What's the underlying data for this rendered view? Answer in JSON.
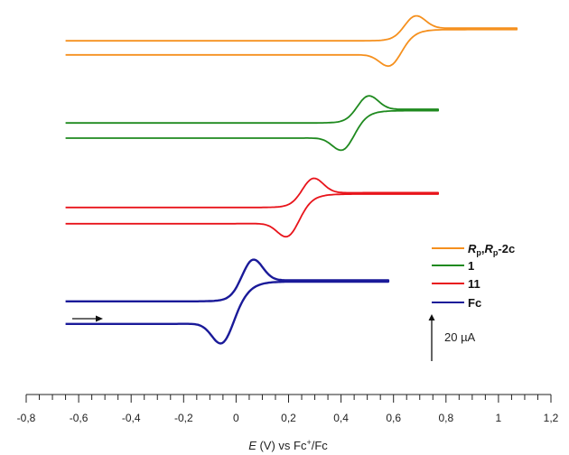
{
  "chart_data": {
    "type": "line",
    "title": "",
    "xlabel_italic": "E",
    "xlabel_rest": " (V) vs Fc",
    "xlabel_sup": "+",
    "xlabel_tail": "/Fc",
    "xlim": [
      -0.8,
      1.2
    ],
    "x_ticks": [
      "-0,8",
      "-0,6",
      "-0,4",
      "-0,2",
      "0",
      "0,2",
      "0,4",
      "0,6",
      "0,8",
      "1",
      "1,2"
    ],
    "x_tick_values": [
      -0.8,
      -0.6,
      -0.4,
      -0.2,
      0,
      0.2,
      0.4,
      0.6,
      0.8,
      1.0,
      1.2
    ],
    "scan_direction_arrow": "→",
    "scale_bar": {
      "label": "20 µA",
      "current_uA": 20
    },
    "series": [
      {
        "name": "Rp,Rp-2c",
        "legend_parts": [
          [
            "R",
            "i"
          ],
          [
            "p",
            "sub"
          ],
          [
            ",",
            "n"
          ],
          [
            "R",
            "i"
          ],
          [
            "p",
            "sub"
          ],
          [
            "-2c",
            "n"
          ]
        ],
        "color": "#f5901e",
        "e_start": -0.65,
        "e_vertex": 1.07,
        "e_pa": 0.68,
        "e_pc": 0.59,
        "ip_uA": 12,
        "baseline_uA": 0
      },
      {
        "name": "1",
        "legend_parts": [
          [
            "1",
            "n"
          ]
        ],
        "color": "#1f8a1f",
        "e_start": -0.65,
        "e_vertex": 0.77,
        "e_pa": 0.5,
        "e_pc": 0.41,
        "ip_uA": 13,
        "baseline_uA": -35
      },
      {
        "name": "11",
        "legend_parts": [
          [
            "11",
            "n"
          ]
        ],
        "color": "#e8141b",
        "e_start": -0.65,
        "e_vertex": 0.77,
        "e_pa": 0.29,
        "e_pc": 0.2,
        "ip_uA": 14,
        "baseline_uA": -71
      },
      {
        "name": "Fc",
        "legend_parts": [
          [
            "Fc",
            "n"
          ]
        ],
        "color": "#1a1a99",
        "e_start": -0.65,
        "e_vertex": 0.58,
        "e_pa": 0.06,
        "e_pc": -0.05,
        "ip_uA": 20,
        "baseline_uA": -111
      }
    ]
  }
}
